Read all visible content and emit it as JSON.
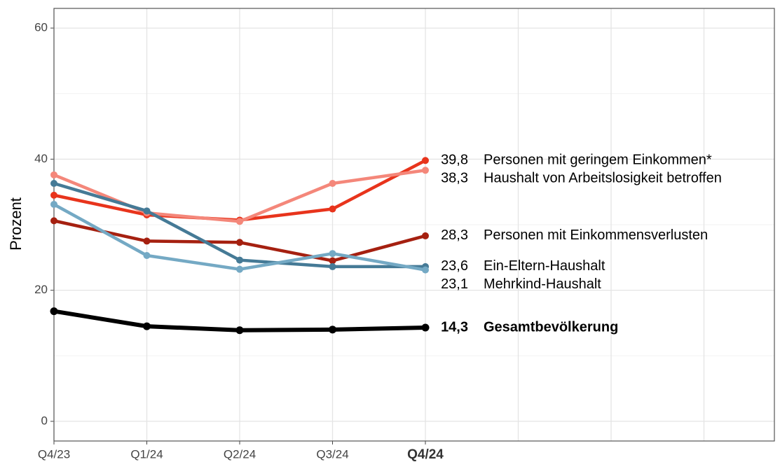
{
  "chart_data": {
    "type": "line",
    "y_label": "Prozent",
    "categories": [
      "Q4/23",
      "Q1/24",
      "Q2/24",
      "Q3/24",
      "Q4/24",
      null,
      null,
      null
    ],
    "ylim": [
      -3,
      63
    ],
    "yticks": [
      0,
      20,
      40,
      60
    ],
    "minor_yticks": [
      10,
      30,
      50
    ],
    "grid": true,
    "series": [
      {
        "name": "Personen mit geringem Einkommen*",
        "color": "#e8341c",
        "values": [
          34.5,
          31.5,
          30.7,
          32.4,
          39.8,
          null,
          null,
          null
        ],
        "value_labels": [
          null,
          null,
          null,
          null,
          "39,8",
          null,
          null,
          null
        ]
      },
      {
        "name": "Haushalt von Arbeitslosigkeit betroffen",
        "color": "#f4877a",
        "values": [
          37.6,
          31.8,
          30.5,
          36.3,
          38.3,
          null,
          null,
          null
        ],
        "value_labels": [
          null,
          null,
          null,
          null,
          "38,3",
          null,
          null,
          null
        ]
      },
      {
        "name": "Personen mit Einkommensverlusten",
        "color": "#a52010",
        "values": [
          30.6,
          27.5,
          27.3,
          24.5,
          28.3,
          null,
          null,
          null
        ],
        "value_labels": [
          null,
          null,
          null,
          null,
          "28,3",
          null,
          null,
          null
        ]
      },
      {
        "name": "Ein-Eltern-Haushalt",
        "color": "#457a96",
        "values": [
          36.3,
          32.1,
          24.6,
          23.6,
          23.6,
          null,
          null,
          null
        ],
        "value_labels": [
          null,
          null,
          null,
          null,
          "23,6",
          null,
          null,
          null
        ]
      },
      {
        "name": "Mehrkind-Haushalt",
        "color": "#74a9c4",
        "values": [
          33.1,
          25.3,
          23.2,
          25.6,
          23.1,
          null,
          null,
          null
        ],
        "value_labels": [
          null,
          null,
          null,
          null,
          "23,1",
          null,
          null,
          null
        ]
      },
      {
        "name": "Gesamtbevölkerung",
        "color": "#000000",
        "bold": true,
        "values": [
          16.8,
          14.5,
          13.9,
          14.0,
          14.3,
          null,
          null,
          null
        ],
        "value_labels": [
          null,
          null,
          null,
          null,
          "14,3",
          null,
          null,
          null
        ]
      }
    ]
  }
}
